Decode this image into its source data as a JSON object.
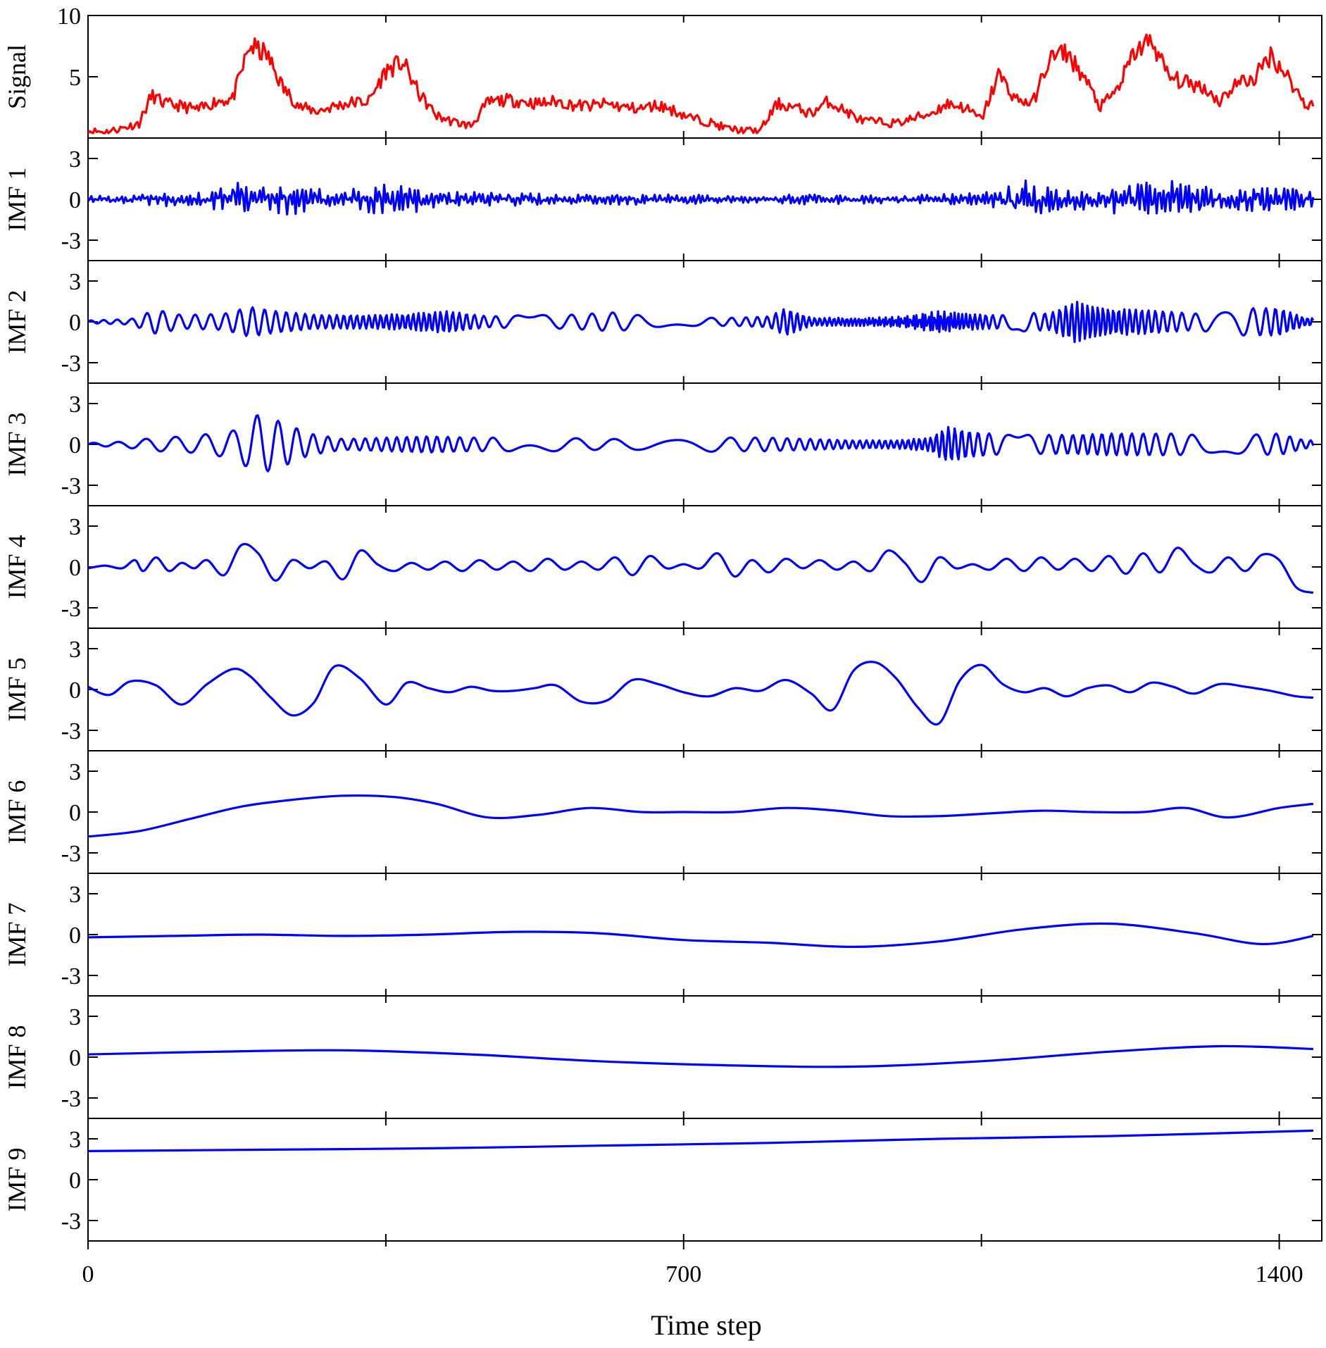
{
  "figure": {
    "xlabel": "Time step"
  },
  "chart_data": {
    "type": "line",
    "xlabel": "Time step",
    "xlim": [
      0,
      1450
    ],
    "xticks": [
      0,
      700,
      1400
    ],
    "x_minor_ticks": [
      350,
      1050
    ],
    "line_colors": {
      "signal": "#ff0000",
      "imf": "#0000ff"
    },
    "panels": [
      {
        "name": "Signal",
        "ylim": [
          0,
          10
        ],
        "yticks": [
          5,
          10
        ],
        "color": "#ff0000",
        "kind": "signal",
        "x": [
          0,
          20,
          40,
          60,
          75,
          90,
          110,
          130,
          150,
          170,
          190,
          210,
          230,
          250,
          270,
          290,
          310,
          330,
          350,
          370,
          390,
          410,
          430,
          450,
          470,
          490,
          510,
          530,
          550,
          570,
          590,
          610,
          630,
          650,
          670,
          690,
          710,
          730,
          750,
          770,
          790,
          810,
          830,
          850,
          870,
          890,
          910,
          930,
          950,
          970,
          990,
          1010,
          1030,
          1050,
          1070,
          1090,
          1110,
          1130,
          1150,
          1170,
          1190,
          1210,
          1230,
          1250,
          1270,
          1290,
          1310,
          1330,
          1350,
          1370,
          1390,
          1410,
          1430
        ],
        "values": [
          0.6,
          0.5,
          0.8,
          1.2,
          3.5,
          2.8,
          2.6,
          2.3,
          3.0,
          3.2,
          7.5,
          6.8,
          4.0,
          2.5,
          2.2,
          2.6,
          2.9,
          3.0,
          5.5,
          6.2,
          3.5,
          1.8,
          1.3,
          1.0,
          2.9,
          3.1,
          3.0,
          2.8,
          3.0,
          2.7,
          2.6,
          2.8,
          2.5,
          2.4,
          2.7,
          2.2,
          1.6,
          1.3,
          0.8,
          0.6,
          0.6,
          2.8,
          2.5,
          2.0,
          3.0,
          2.2,
          1.4,
          1.3,
          1.2,
          1.6,
          2.0,
          2.8,
          2.5,
          1.5,
          5.2,
          3.2,
          2.8,
          6.5,
          7.0,
          5.0,
          2.5,
          4.0,
          7.0,
          8.0,
          5.0,
          4.5,
          4.2,
          3.0,
          4.5,
          4.8,
          6.8,
          5.0,
          2.8
        ]
      },
      {
        "name": "IMF 1",
        "ylim": [
          -4.5,
          4.5
        ],
        "yticks": [
          -3,
          0,
          3
        ],
        "color": "#0000ff",
        "kind": "noise",
        "envelope_x": [
          0,
          50,
          90,
          130,
          170,
          190,
          210,
          240,
          280,
          330,
          350,
          380,
          420,
          480,
          540,
          600,
          660,
          700,
          760,
          820,
          830,
          860,
          900,
          960,
          1000,
          1050,
          1080,
          1100,
          1120,
          1150,
          1180,
          1220,
          1280,
          1340,
          1400,
          1430
        ],
        "envelope": [
          0.3,
          0.3,
          0.5,
          0.6,
          1.0,
          1.6,
          0.9,
          1.2,
          0.6,
          1.2,
          1.4,
          1.0,
          0.6,
          0.5,
          0.4,
          0.4,
          0.4,
          0.5,
          0.3,
          0.3,
          0.6,
          0.4,
          0.3,
          0.3,
          0.4,
          0.5,
          0.8,
          2.1,
          1.2,
          0.8,
          0.8,
          1.4,
          1.3,
          1.0,
          1.2,
          0.7
        ]
      },
      {
        "name": "IMF 2",
        "ylim": [
          -4.5,
          4.5
        ],
        "yticks": [
          -3,
          0,
          3
        ],
        "color": "#0000ff",
        "kind": "wave",
        "period": 14,
        "envelope_x": [
          0,
          50,
          80,
          110,
          160,
          190,
          220,
          270,
          330,
          380,
          420,
          470,
          520,
          560,
          620,
          660,
          700,
          760,
          800,
          820,
          850,
          880,
          920,
          960,
          1000,
          1030,
          1060,
          1080,
          1100,
          1130,
          1160,
          1200,
          1240,
          1300,
          1350,
          1400,
          1430
        ],
        "envelope": [
          0.1,
          0.2,
          0.9,
          0.5,
          0.6,
          1.1,
          0.8,
          0.5,
          0.5,
          0.6,
          0.8,
          0.4,
          0.5,
          0.5,
          0.7,
          0.4,
          0.3,
          0.3,
          0.4,
          1.0,
          0.3,
          0.3,
          0.3,
          0.4,
          0.8,
          0.6,
          0.5,
          0.5,
          0.7,
          0.6,
          1.5,
          1.0,
          0.9,
          0.6,
          1.0,
          1.0,
          0.3
        ]
      },
      {
        "name": "IMF 3",
        "ylim": [
          -4.5,
          4.5
        ],
        "yticks": [
          -3,
          0,
          3
        ],
        "color": "#0000ff",
        "kind": "wave",
        "period": 26,
        "envelope_x": [
          0,
          40,
          80,
          120,
          170,
          200,
          230,
          260,
          300,
          350,
          400,
          450,
          500,
          550,
          600,
          650,
          700,
          750,
          800,
          850,
          900,
          950,
          990,
          1010,
          1040,
          1080,
          1120,
          1160,
          1200,
          1240,
          1280,
          1320,
          1360,
          1400,
          1430
        ],
        "envelope": [
          0.1,
          0.2,
          0.5,
          0.6,
          1.0,
          2.2,
          1.6,
          0.8,
          0.4,
          0.5,
          0.6,
          0.5,
          0.5,
          0.5,
          0.4,
          0.4,
          0.6,
          0.5,
          0.5,
          0.4,
          0.3,
          0.3,
          0.5,
          1.3,
          0.9,
          0.7,
          0.7,
          0.7,
          0.8,
          0.8,
          0.8,
          0.6,
          0.7,
          0.8,
          0.3
        ]
      },
      {
        "name": "IMF 4",
        "ylim": [
          -4.5,
          4.5
        ],
        "yticks": [
          -3,
          0,
          3
        ],
        "color": "#0000ff",
        "kind": "points",
        "x": [
          0,
          20,
          40,
          55,
          65,
          80,
          95,
          110,
          125,
          140,
          160,
          180,
          200,
          220,
          240,
          260,
          280,
          300,
          320,
          340,
          360,
          380,
          400,
          420,
          440,
          460,
          480,
          500,
          520,
          540,
          560,
          580,
          600,
          620,
          640,
          660,
          680,
          700,
          720,
          740,
          760,
          780,
          800,
          820,
          840,
          860,
          880,
          900,
          920,
          940,
          960,
          980,
          1000,
          1020,
          1040,
          1060,
          1080,
          1100,
          1120,
          1140,
          1160,
          1180,
          1200,
          1220,
          1240,
          1260,
          1280,
          1300,
          1320,
          1340,
          1360,
          1380,
          1400,
          1420,
          1440
        ],
        "values": [
          -0.1,
          0.1,
          -0.1,
          0.5,
          -0.3,
          0.7,
          -0.3,
          0.3,
          -0.1,
          0.5,
          -0.6,
          1.6,
          1.0,
          -1.0,
          0.5,
          -0.1,
          0.4,
          -0.9,
          1.2,
          0.2,
          -0.3,
          0.3,
          -0.2,
          0.4,
          -0.3,
          0.5,
          -0.2,
          0.4,
          -0.3,
          0.6,
          -0.2,
          0.4,
          -0.2,
          0.7,
          -0.6,
          0.8,
          -0.1,
          0.2,
          -0.1,
          1.0,
          -0.7,
          0.5,
          -0.4,
          0.6,
          -0.1,
          0.5,
          -0.2,
          0.4,
          -0.3,
          1.2,
          0.3,
          -1.1,
          0.7,
          -0.1,
          0.2,
          -0.2,
          0.6,
          -0.3,
          0.7,
          -0.2,
          0.6,
          -0.3,
          0.8,
          -0.5,
          1.0,
          -0.4,
          1.4,
          0.2,
          -0.4,
          0.7,
          -0.3,
          0.9,
          0.5,
          -1.5,
          -1.9
        ]
      },
      {
        "name": "IMF 5",
        "ylim": [
          -4.5,
          4.5
        ],
        "yticks": [
          -3,
          0,
          3
        ],
        "color": "#0000ff",
        "kind": "points",
        "x": [
          0,
          25,
          50,
          80,
          110,
          140,
          170,
          190,
          215,
          240,
          265,
          290,
          320,
          350,
          375,
          400,
          425,
          450,
          475,
          500,
          525,
          550,
          580,
          610,
          640,
          670,
          700,
          730,
          760,
          790,
          820,
          850,
          875,
          900,
          925,
          950,
          975,
          1000,
          1025,
          1050,
          1075,
          1100,
          1125,
          1150,
          1175,
          1200,
          1225,
          1250,
          1275,
          1300,
          1330,
          1360,
          1390,
          1420,
          1440
        ],
        "values": [
          0.2,
          -0.4,
          0.6,
          0.3,
          -1.1,
          0.4,
          1.5,
          1.0,
          -0.6,
          -1.9,
          -1.0,
          1.7,
          0.8,
          -1.1,
          0.5,
          0.1,
          -0.2,
          0.2,
          -0.1,
          -0.1,
          0.1,
          0.3,
          -0.9,
          -0.8,
          0.7,
          0.4,
          -0.2,
          -0.5,
          0.1,
          -0.1,
          0.7,
          -0.3,
          -1.5,
          1.4,
          2.0,
          0.8,
          -1.3,
          -2.5,
          0.7,
          1.8,
          0.4,
          -0.2,
          0.1,
          -0.5,
          0.1,
          0.3,
          -0.2,
          0.5,
          0.2,
          -0.3,
          0.4,
          0.2,
          -0.1,
          -0.5,
          -0.6
        ]
      },
      {
        "name": "IMF 6",
        "ylim": [
          -4.5,
          4.5
        ],
        "yticks": [
          -3,
          0,
          3
        ],
        "color": "#0000ff",
        "kind": "points",
        "x": [
          0,
          60,
          120,
          180,
          240,
          300,
          360,
          410,
          470,
          530,
          590,
          650,
          700,
          760,
          820,
          880,
          940,
          1000,
          1060,
          1120,
          1180,
          1240,
          1290,
          1340,
          1400,
          1440
        ],
        "values": [
          -1.8,
          -1.4,
          -0.5,
          0.4,
          0.9,
          1.2,
          1.1,
          0.6,
          -0.4,
          -0.2,
          0.3,
          0.0,
          0.0,
          0.0,
          0.3,
          0.1,
          -0.3,
          -0.3,
          -0.1,
          0.1,
          0.0,
          0.0,
          0.3,
          -0.4,
          0.3,
          0.6
        ]
      },
      {
        "name": "IMF 7",
        "ylim": [
          -4.5,
          4.5
        ],
        "yticks": [
          -3,
          0,
          3
        ],
        "color": "#0000ff",
        "kind": "points",
        "x": [
          0,
          100,
          200,
          300,
          400,
          500,
          600,
          700,
          800,
          900,
          1000,
          1100,
          1200,
          1300,
          1380,
          1440
        ],
        "values": [
          -0.2,
          -0.1,
          0.0,
          -0.1,
          0.0,
          0.2,
          0.1,
          -0.4,
          -0.6,
          -0.9,
          -0.5,
          0.4,
          0.8,
          0.1,
          -0.7,
          -0.1
        ]
      },
      {
        "name": "IMF 8",
        "ylim": [
          -4.5,
          4.5
        ],
        "yticks": [
          -3,
          0,
          3
        ],
        "color": "#0000ff",
        "kind": "points",
        "x": [
          0,
          150,
          300,
          450,
          600,
          750,
          900,
          1050,
          1200,
          1330,
          1440
        ],
        "values": [
          0.2,
          0.4,
          0.5,
          0.2,
          -0.3,
          -0.6,
          -0.7,
          -0.3,
          0.4,
          0.8,
          0.6
        ]
      },
      {
        "name": "IMF 9",
        "ylim": [
          -4.5,
          4.5
        ],
        "yticks": [
          -3,
          0,
          3
        ],
        "color": "#0000ff",
        "kind": "points",
        "x": [
          0,
          200,
          400,
          600,
          800,
          1000,
          1200,
          1440
        ],
        "values": [
          2.1,
          2.2,
          2.3,
          2.5,
          2.7,
          3.0,
          3.2,
          3.6
        ]
      }
    ]
  }
}
